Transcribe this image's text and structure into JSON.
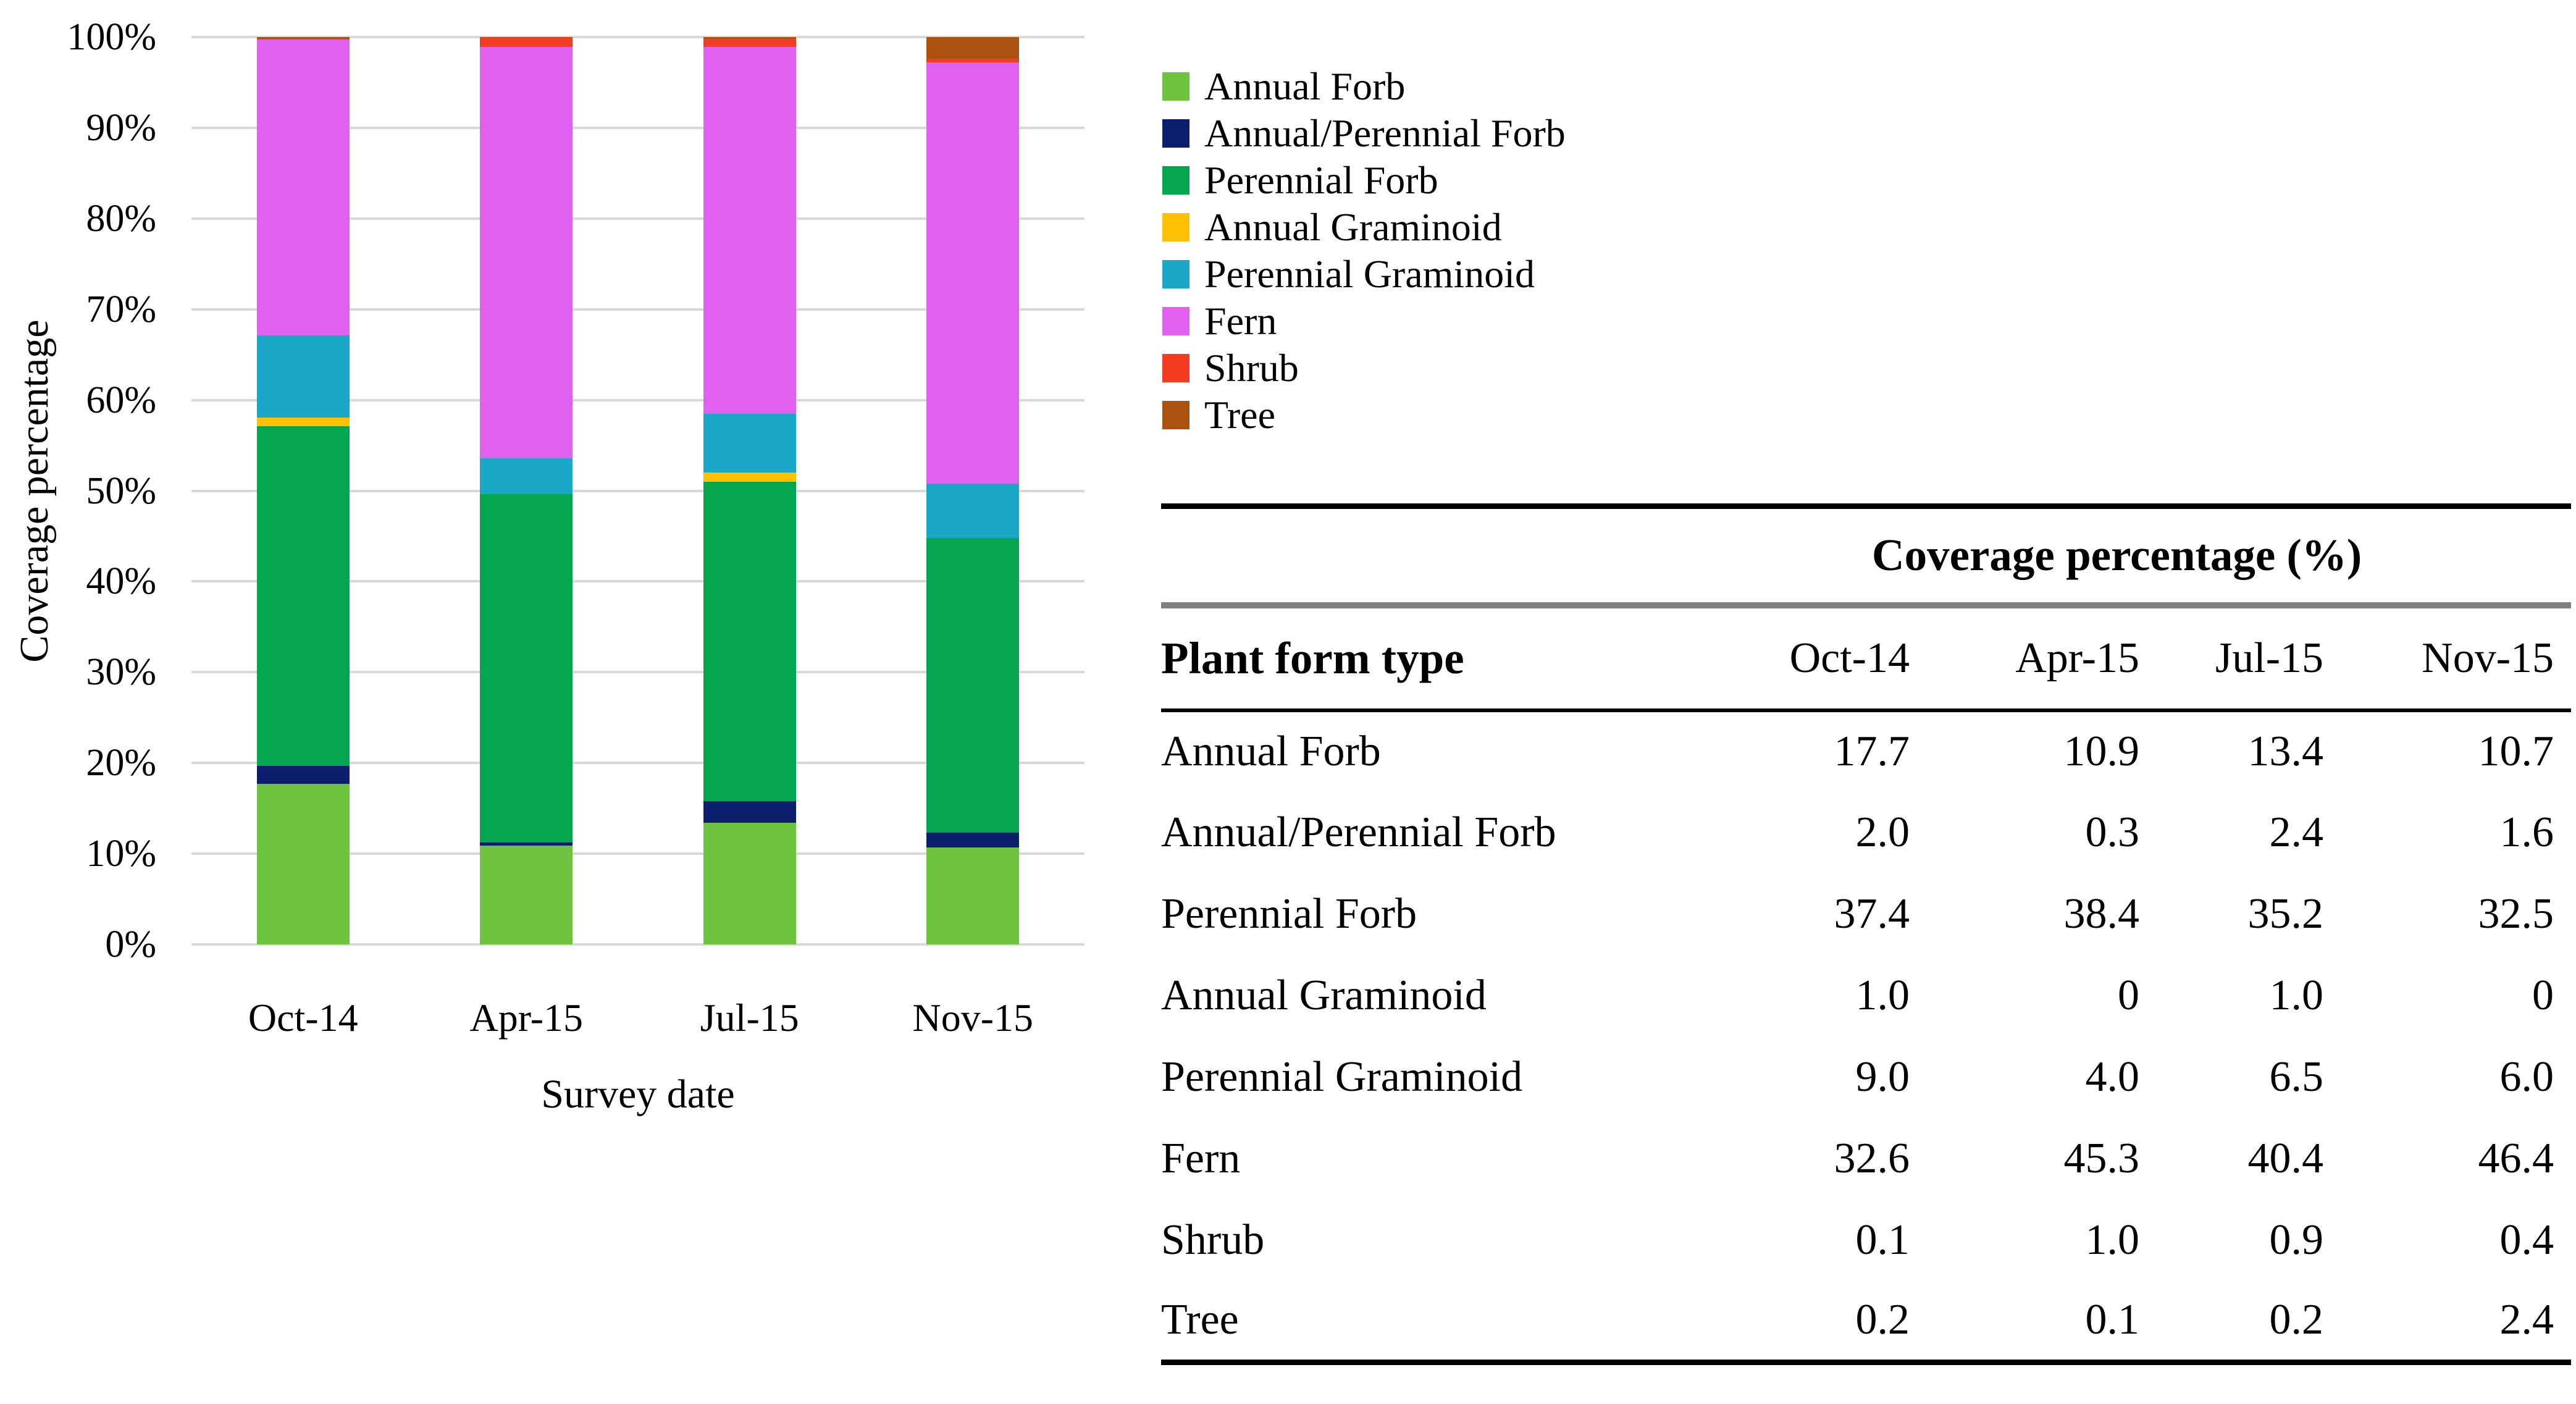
{
  "chart_data": {
    "type": "bar",
    "stacked": true,
    "units": "percent",
    "title": "",
    "xlabel": "Survey date",
    "ylabel": "Coverage percentage",
    "categories": [
      "Oct-14",
      "Apr-15",
      "Jul-15",
      "Nov-15"
    ],
    "y_ticks": [
      "0%",
      "10%",
      "20%",
      "30%",
      "40%",
      "50%",
      "60%",
      "70%",
      "80%",
      "90%",
      "100%"
    ],
    "ylim": [
      0,
      100
    ],
    "grid": true,
    "gridline_color": "#d9d9d9",
    "legend_position": "right",
    "series": [
      {
        "name": "Annual Forb",
        "color": "#6fc43f",
        "values": [
          17.7,
          10.9,
          13.4,
          10.7
        ]
      },
      {
        "name": "Annual/Perennial Forb",
        "color": "#0d1e6e",
        "values": [
          2.0,
          0.3,
          2.4,
          1.6
        ]
      },
      {
        "name": "Perennial Forb",
        "color": "#04a650",
        "values": [
          37.4,
          38.4,
          35.2,
          32.5
        ]
      },
      {
        "name": "Annual Graminoid",
        "color": "#fec000",
        "values": [
          1.0,
          0,
          1.0,
          0
        ]
      },
      {
        "name": "Perennial Graminoid",
        "color": "#1aa7c8",
        "values": [
          9.0,
          4.0,
          6.5,
          6.0
        ]
      },
      {
        "name": "Fern",
        "color": "#e060f0",
        "values": [
          32.6,
          45.3,
          40.4,
          46.4
        ]
      },
      {
        "name": "Shrub",
        "color": "#f43c22",
        "values": [
          0.1,
          1.0,
          0.9,
          0.4
        ]
      },
      {
        "name": "Tree",
        "color": "#ac5210",
        "values": [
          0.2,
          0.1,
          0.2,
          2.4
        ]
      }
    ]
  },
  "table": {
    "title": "Coverage percentage (%)",
    "header": [
      "Plant form type",
      "Oct-14",
      "Apr-15",
      "Jul-15",
      "Nov-15"
    ],
    "rows": [
      [
        "Annual Forb",
        "17.7",
        "10.9",
        "13.4",
        "10.7"
      ],
      [
        "Annual/Perennial Forb",
        "2.0",
        "0.3",
        "2.4",
        "1.6"
      ],
      [
        "Perennial Forb",
        "37.4",
        "38.4",
        "35.2",
        "32.5"
      ],
      [
        "Annual Graminoid",
        "1.0",
        "0",
        "1.0",
        "0"
      ],
      [
        "Perennial Graminoid",
        "9.0",
        "4.0",
        "6.5",
        "6.0"
      ],
      [
        "Fern",
        "32.6",
        "45.3",
        "40.4",
        "46.4"
      ],
      [
        "Shrub",
        "0.1",
        "1.0",
        "0.9",
        "0.4"
      ],
      [
        "Tree",
        "0.2",
        "0.1",
        "0.2",
        "2.4"
      ]
    ]
  }
}
